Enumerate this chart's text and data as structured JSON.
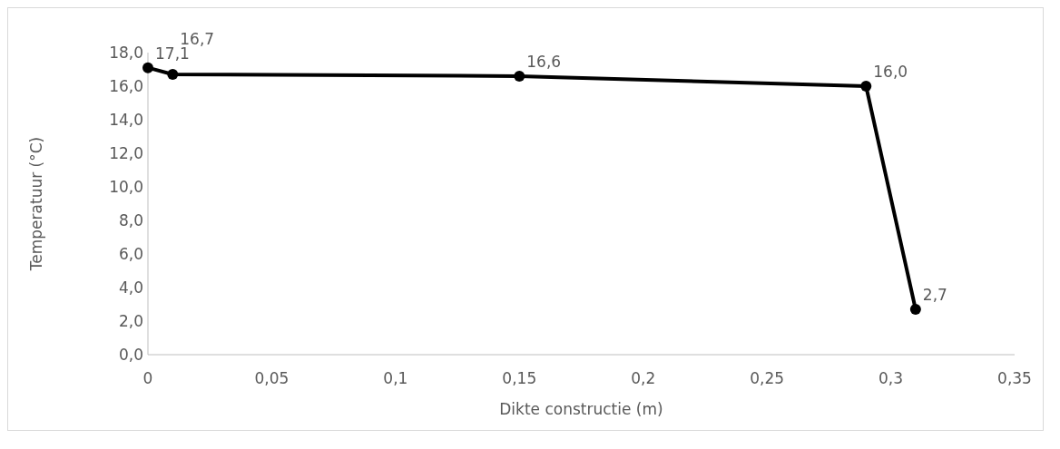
{
  "chart_data": {
    "type": "line",
    "xlabel": "Dikte constructie (m)",
    "ylabel": "Temperatuur (°C)",
    "x": [
      0,
      0.01,
      0.15,
      0.29,
      0.31
    ],
    "series": [
      {
        "color": "#000000",
        "values": [
          17.1,
          16.7,
          16.6,
          16.0,
          2.7
        ]
      }
    ],
    "value_labels": [
      "17,1",
      "16,7",
      "16,6",
      "16,0",
      "2,7"
    ],
    "marker": "circle",
    "line_style": "solid",
    "grid": false,
    "xlim": [
      0,
      0.35
    ],
    "xticks": [
      0,
      {
        "value": 0.05,
        "label": "0,05"
      },
      {
        "value": 0.1,
        "label": "0,1"
      },
      {
        "value": 0.15,
        "label": "0,15"
      },
      {
        "value": 0.2,
        "label": "0,2"
      },
      {
        "value": 0.25,
        "label": "0,25"
      },
      {
        "value": 0.3,
        "label": "0,3"
      },
      {
        "value": 0.35,
        "label": "0,35"
      }
    ],
    "ylim": [
      0,
      18
    ],
    "yticks": [
      {
        "value": 0,
        "label": "0,0"
      },
      {
        "value": 2,
        "label": "2,0"
      },
      {
        "value": 4,
        "label": "4,0"
      },
      {
        "value": 6,
        "label": "6,0"
      },
      {
        "value": 8,
        "label": "8,0"
      },
      {
        "value": 10,
        "label": "10,0"
      },
      {
        "value": 12,
        "label": "12,0"
      },
      {
        "value": 14,
        "label": "14,0"
      },
      {
        "value": 16,
        "label": "16,0"
      },
      {
        "value": 18,
        "label": "18,0"
      }
    ]
  }
}
